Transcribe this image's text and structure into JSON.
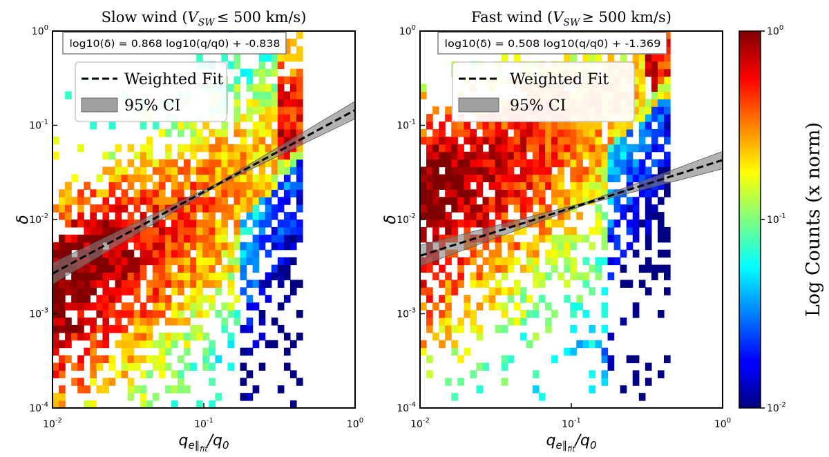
{
  "chart_data": [
    {
      "type": "heatmap",
      "title": "Slow wind (V_SW ≤ 500 km/s)",
      "title_plain": "Slow wind (",
      "title_var": "V",
      "title_sub": "SW",
      "title_rest": "≤ 500 km/s)",
      "xlabel": "q_e∥fit / q_0",
      "ylabel": "δ",
      "xscale": "log",
      "yscale": "log",
      "xlim": [
        0.01,
        1
      ],
      "ylim": [
        0.0001,
        1
      ],
      "x_ticks": [
        {
          "exp": "-2",
          "value": 0.01
        },
        {
          "exp": "-1",
          "value": 0.1
        },
        {
          "exp": "0",
          "value": 1
        }
      ],
      "y_ticks": [
        {
          "exp": "-4",
          "value": 0.0001
        },
        {
          "exp": "-3",
          "value": 0.001
        },
        {
          "exp": "-2",
          "value": 0.01
        },
        {
          "exp": "-1",
          "value": 0.1
        },
        {
          "exp": "0",
          "value": 1
        }
      ],
      "fit_equation": "log10(δ) = 0.868 log10(q/q0) + -0.838",
      "fit": {
        "slope": 0.868,
        "intercept": -0.838
      },
      "legend": {
        "fit_label": "Weighted Fit",
        "ci_label": "95% CI",
        "placement": "upper-left"
      },
      "density": {
        "x_max": 0.45,
        "ridge": [
          0.0,
          -2.6,
          0.72
        ],
        "y_top": 0.0,
        "y_bottom": -4.0
      },
      "seed": 11
    },
    {
      "type": "heatmap",
      "title": "Fast wind (V_SW ≥ 500 km/s)",
      "title_plain": "Fast wind (",
      "title_var": "V",
      "title_sub": "SW",
      "title_rest": "≥ 500 km/s)",
      "xlabel": "q_e∥fit / q_0",
      "ylabel": "δ",
      "xscale": "log",
      "yscale": "log",
      "xlim": [
        0.01,
        1
      ],
      "ylim": [
        0.0001,
        1
      ],
      "x_ticks": [
        {
          "exp": "-2",
          "value": 0.01
        },
        {
          "exp": "-1",
          "value": 0.1
        },
        {
          "exp": "0",
          "value": 1
        }
      ],
      "y_ticks": [
        {
          "exp": "-4",
          "value": 0.0001
        },
        {
          "exp": "-3",
          "value": 0.001
        },
        {
          "exp": "-2",
          "value": 0.01
        },
        {
          "exp": "-1",
          "value": 0.1
        },
        {
          "exp": "0",
          "value": 1
        }
      ],
      "fit_equation": "log10(δ) = 0.508 log10(q/q0) + -1.369",
      "fit": {
        "slope": 0.508,
        "intercept": -1.369
      },
      "legend": {
        "fit_label": "Weighted Fit",
        "ci_label": "95% CI",
        "placement": "upper-left"
      },
      "density": {
        "x_max": 0.45,
        "ridge": [
          0.0,
          -1.7,
          0.6
        ],
        "y_top": 0.0,
        "y_bottom": -4.0
      },
      "seed": 29
    }
  ],
  "colorbar": {
    "label": "Log Counts (x norm)",
    "scale": "log",
    "range": [
      0.01,
      1
    ],
    "ticks": [
      {
        "exp": "0",
        "value": 1
      },
      {
        "exp": "-1",
        "value": 0.1
      },
      {
        "exp": "-2",
        "value": 0.01
      }
    ],
    "colormap": "jet"
  }
}
